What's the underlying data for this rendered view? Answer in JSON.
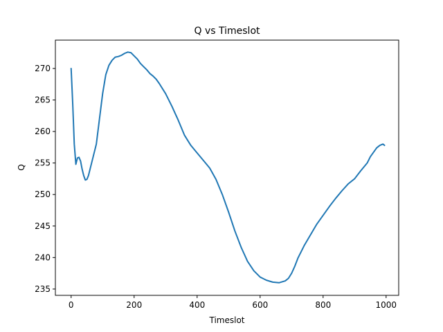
{
  "chart_data": {
    "type": "line",
    "title": "Q vs Timeslot",
    "xlabel": "Timeslot",
    "ylabel": "Q",
    "xlim": [
      -50,
      1040
    ],
    "ylim": [
      234.0,
      274.5
    ],
    "xticks": [
      0,
      200,
      400,
      600,
      800,
      1000
    ],
    "yticks": [
      235,
      240,
      245,
      250,
      255,
      260,
      265,
      270
    ],
    "grid": false,
    "series": [
      {
        "color": "#1f77b4",
        "x": [
          0,
          5,
          10,
          15,
          20,
          25,
          30,
          35,
          40,
          45,
          50,
          55,
          60,
          70,
          80,
          90,
          100,
          110,
          120,
          130,
          140,
          150,
          160,
          170,
          180,
          190,
          200,
          210,
          220,
          230,
          240,
          250,
          260,
          270,
          280,
          290,
          300,
          310,
          320,
          340,
          360,
          380,
          400,
          420,
          440,
          460,
          480,
          500,
          520,
          540,
          560,
          580,
          600,
          620,
          640,
          660,
          680,
          690,
          700,
          710,
          720,
          740,
          760,
          780,
          800,
          820,
          840,
          860,
          880,
          900,
          920,
          940,
          950,
          960,
          970,
          980,
          990,
          995
        ],
        "y": [
          270.0,
          264.5,
          258.0,
          254.8,
          255.8,
          255.9,
          255.3,
          254.0,
          253.0,
          252.3,
          252.4,
          253.0,
          254.0,
          256.0,
          258.0,
          262.0,
          266.0,
          269.0,
          270.5,
          271.3,
          271.8,
          271.9,
          272.1,
          272.4,
          272.6,
          272.5,
          272.0,
          271.5,
          270.8,
          270.3,
          269.8,
          269.2,
          268.8,
          268.3,
          267.6,
          266.8,
          266.0,
          265.0,
          264.0,
          261.8,
          259.4,
          257.8,
          256.6,
          255.4,
          254.2,
          252.4,
          250.0,
          247.2,
          244.2,
          241.6,
          239.4,
          237.9,
          236.9,
          236.4,
          236.1,
          236.0,
          236.3,
          236.7,
          237.5,
          238.6,
          239.9,
          241.9,
          243.6,
          245.3,
          246.7,
          248.1,
          249.4,
          250.6,
          251.7,
          252.5,
          253.8,
          255.0,
          256.0,
          256.7,
          257.4,
          257.8,
          258.0,
          257.8
        ]
      }
    ]
  }
}
